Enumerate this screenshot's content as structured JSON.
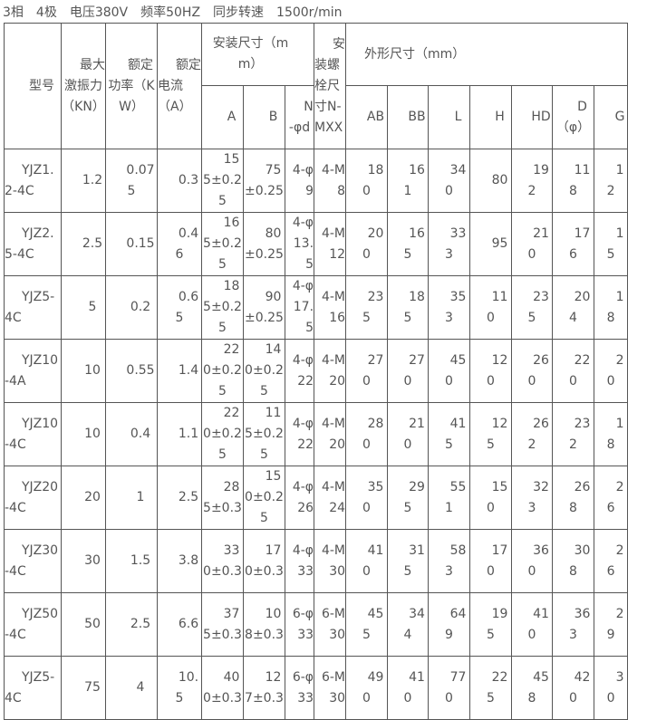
{
  "title": "3相　4极　电压380V　频率50HZ　同步转速　1500r/min",
  "header": {
    "model": "型号",
    "force": "最大激振力（KN）",
    "power": "额定功率（KW）",
    "current": "额定电流（A）",
    "install": "安装尺寸（mm）",
    "bolt": "安装螺栓尺寸N-MXX",
    "outline": "外形尺寸（mm）",
    "sub": [
      "A",
      "B",
      "N-φd",
      "AB",
      "BB",
      "L",
      "H",
      "HD",
      "D（φ）",
      "G"
    ]
  },
  "rows": [
    [
      "YJZ1.2-4C",
      "1.2",
      "0.075",
      "0.3",
      "155±0.25",
      "75±0.25",
      "4-φ9",
      "4-M8",
      "180",
      "161",
      "340",
      "80",
      "192",
      "118",
      "12"
    ],
    [
      "YJZ2.5-4C",
      "2.5",
      "0.15",
      "0.46",
      "165±0.25",
      "80±0.25",
      "4-φ13.5",
      "4-M12",
      "200",
      "165",
      "333",
      "95",
      "210",
      "176",
      "15"
    ],
    [
      "YJZ5-4C",
      "5",
      "0.2",
      "0.65",
      "185±0.25",
      "90±0.25",
      "4-φ17.5",
      "4-M16",
      "235",
      "185",
      "353",
      "110",
      "235",
      "204",
      "18"
    ],
    [
      "YJZ10-4A",
      "10",
      "0.55",
      "1.4",
      "220±0.25",
      "140±0.25",
      "4-φ22",
      "4-M20",
      "270",
      "270",
      "450",
      "120",
      "260",
      "220",
      "20"
    ],
    [
      "YJZ10-4C",
      "10",
      "0.4",
      "1.1",
      "220±0.25",
      "115±0.25",
      "4-φ22",
      "4-M20",
      "280",
      "210",
      "415",
      "125",
      "262",
      "232",
      "18"
    ],
    [
      "YJZ20-4C",
      "20",
      "1",
      "2.5",
      "285±0.3",
      "150±0.25",
      "4-φ26",
      "4-M24",
      "350",
      "295",
      "551",
      "150",
      "323",
      "268",
      "26"
    ],
    [
      "YJZ30-4C",
      "30",
      "1.5",
      "3.8",
      "330±0.3",
      "170±0.3",
      "4-φ33",
      "4-M30",
      "410",
      "315",
      "583",
      "170",
      "360",
      "308",
      "26"
    ],
    [
      "YJZ50-4C",
      "50",
      "2.5",
      "6.6",
      "375±0.3",
      "108±0.3",
      "6-φ33",
      "6-M30",
      "455",
      "344",
      "649",
      "195",
      "410",
      "363",
      "29"
    ],
    [
      "YJZ5-4C",
      "75",
      "4",
      "10.5",
      "400±0.3",
      "127±0.3",
      "6-φ33",
      "6-M30",
      "490",
      "410",
      "770",
      "225",
      "458",
      "420",
      "30"
    ]
  ]
}
